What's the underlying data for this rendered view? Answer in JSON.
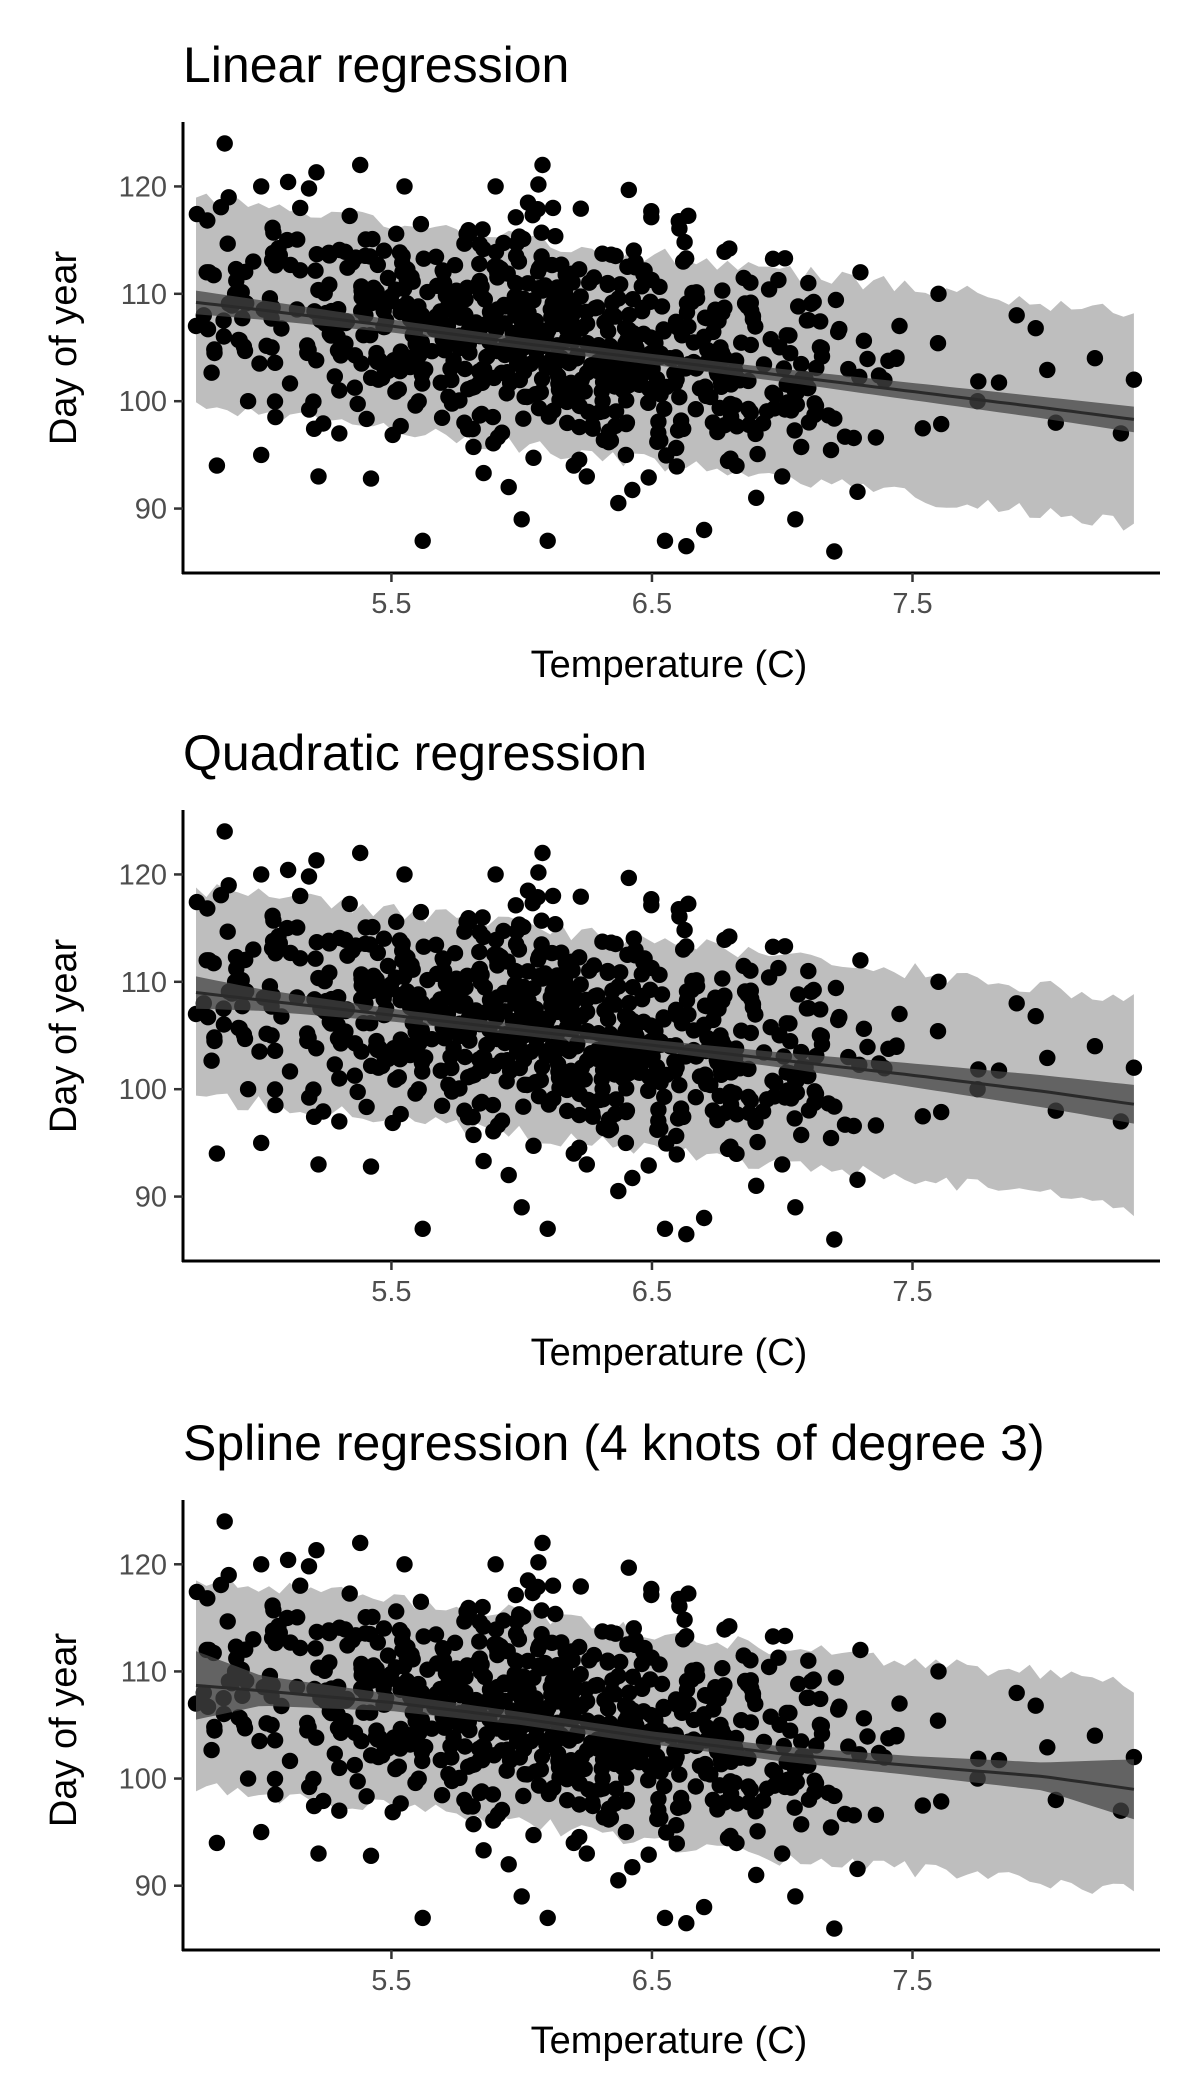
{
  "chart_data": [
    {
      "type": "scatter",
      "title": "Linear regression",
      "xlabel": "Temperature (C)",
      "ylabel": "Day of year",
      "xlim": [
        4.7,
        8.45
      ],
      "ylim": [
        84,
        126
      ],
      "xticks": [
        "5.5",
        "6.5",
        "7.5"
      ],
      "yticks": [
        "90",
        "100",
        "110",
        "120"
      ],
      "grid": false,
      "legend": "none",
      "fit": {
        "kind": "linear",
        "x": [
          4.75,
          5.0,
          5.5,
          6.0,
          6.5,
          7.0,
          7.5,
          8.0,
          8.35
        ],
        "y": [
          109.2,
          108.5,
          107.0,
          105.4,
          103.9,
          102.4,
          100.9,
          99.4,
          98.3
        ],
        "ci_lower": [
          108.1,
          107.6,
          106.4,
          104.9,
          103.4,
          101.8,
          100.1,
          98.4,
          97.1
        ],
        "ci_upper": [
          110.3,
          109.4,
          107.6,
          105.9,
          104.4,
          103.0,
          101.7,
          100.4,
          99.5
        ],
        "pi_lower": [
          99.5,
          98.8,
          97.3,
          95.7,
          94.2,
          92.7,
          91.2,
          89.7,
          88.6
        ],
        "pi_upper": [
          118.9,
          118.2,
          116.7,
          115.1,
          113.6,
          112.1,
          110.6,
          109.1,
          108.0
        ]
      }
    },
    {
      "type": "scatter",
      "title": "Quadratic regression",
      "xlabel": "Temperature (C)",
      "ylabel": "Day of year",
      "xlim": [
        4.7,
        8.45
      ],
      "ylim": [
        84,
        126
      ],
      "xticks": [
        "5.5",
        "6.5",
        "7.5"
      ],
      "yticks": [
        "90",
        "100",
        "110",
        "120"
      ],
      "grid": false,
      "legend": "none",
      "fit": {
        "kind": "quadratic",
        "x": [
          4.75,
          5.0,
          5.5,
          6.0,
          6.5,
          7.0,
          7.5,
          8.0,
          8.35
        ],
        "y": [
          109.0,
          108.3,
          106.9,
          105.5,
          104.1,
          102.7,
          101.3,
          99.8,
          98.6
        ],
        "ci_lower": [
          107.5,
          107.3,
          106.3,
          105.0,
          103.6,
          102.0,
          100.2,
          98.3,
          96.8
        ],
        "ci_upper": [
          110.5,
          109.3,
          107.5,
          106.0,
          104.6,
          103.4,
          102.4,
          101.3,
          100.4
        ],
        "pi_lower": [
          99.3,
          98.6,
          97.2,
          95.8,
          94.4,
          93.0,
          91.6,
          90.1,
          88.9
        ],
        "pi_upper": [
          118.7,
          118.0,
          116.6,
          115.2,
          113.8,
          112.4,
          111.0,
          109.5,
          108.3
        ]
      }
    },
    {
      "type": "scatter",
      "title": "Spline regression (4 knots of degree 3)",
      "xlabel": "Temperature (C)",
      "ylabel": "Day of year",
      "xlim": [
        4.7,
        8.45
      ],
      "ylim": [
        84,
        126
      ],
      "xticks": [
        "5.5",
        "6.5",
        "7.5"
      ],
      "yticks": [
        "90",
        "100",
        "110",
        "120"
      ],
      "grid": false,
      "legend": "none",
      "fit": {
        "kind": "spline",
        "x": [
          4.75,
          5.0,
          5.5,
          6.0,
          6.5,
          7.0,
          7.5,
          8.0,
          8.35
        ],
        "y": [
          108.7,
          108.2,
          107.1,
          105.6,
          103.8,
          102.3,
          101.2,
          100.2,
          99.0
        ],
        "ci_lower": [
          105.5,
          106.8,
          106.3,
          105.0,
          103.2,
          101.6,
          100.3,
          98.9,
          96.2
        ],
        "ci_upper": [
          111.9,
          109.6,
          107.9,
          106.2,
          104.4,
          103.0,
          102.1,
          101.5,
          101.8
        ],
        "pi_lower": [
          99.0,
          98.5,
          97.4,
          95.9,
          94.1,
          92.6,
          91.5,
          90.5,
          89.3
        ],
        "pi_upper": [
          118.4,
          117.9,
          116.8,
          115.3,
          113.5,
          112.0,
          110.9,
          109.9,
          108.7
        ]
      }
    }
  ],
  "observations": {
    "x": [
      4.75,
      4.8,
      4.86,
      4.9,
      4.83,
      4.78,
      4.95,
      5.0,
      5.04,
      5.1,
      5.0,
      4.97,
      5.15,
      5.22,
      5.3,
      5.38,
      5.4,
      5.45,
      5.55,
      5.62,
      5.7,
      5.78,
      5.85,
      5.9,
      5.95,
      6.0,
      6.08,
      6.1,
      6.12,
      6.2,
      6.25,
      6.33,
      6.4,
      6.5,
      6.55,
      6.62,
      6.7,
      6.78,
      6.9,
      7.0,
      7.1,
      7.2,
      7.3,
      7.45,
      7.6,
      7.75,
      7.9,
      8.05,
      8.2,
      8.3,
      8.35,
      6.05,
      5.85,
      5.3,
      6.3,
      6.7,
      7.05
    ],
    "y": [
      107,
      112,
      124,
      110,
      94,
      108,
      100,
      120,
      105,
      115,
      95,
      113,
      118,
      93,
      97,
      122,
      108,
      102,
      120,
      87,
      112,
      98,
      116,
      120,
      92,
      89,
      122,
      87,
      118,
      94,
      93,
      111,
      95,
      104,
      87,
      113,
      88,
      104,
      91,
      93,
      111,
      86,
      112,
      107,
      110,
      100,
      108,
      98,
      104,
      97,
      102,
      106,
      103,
      101,
      99,
      106,
      89
    ]
  }
}
